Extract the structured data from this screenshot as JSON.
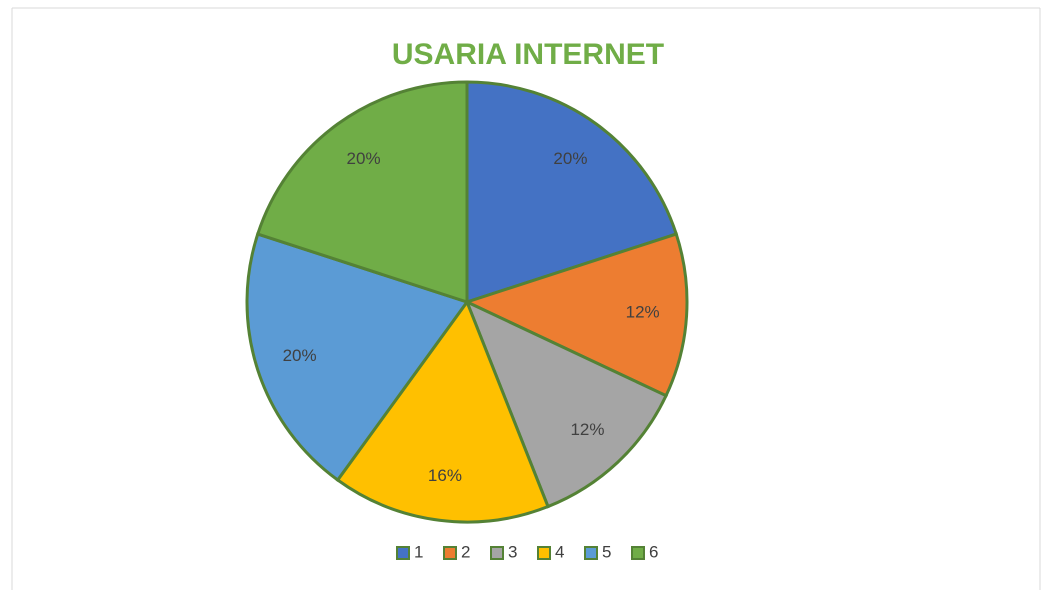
{
  "chart_data": {
    "type": "pie",
    "title": "USARIA INTERNET",
    "categories": [
      "1",
      "2",
      "3",
      "4",
      "5",
      "6"
    ],
    "values": [
      20,
      12,
      12,
      16,
      20,
      20
    ],
    "value_labels": [
      "20%",
      "12%",
      "12%",
      "16%",
      "20%",
      "20%"
    ],
    "colors": [
      "#4472c4",
      "#ed7d31",
      "#a5a5a5",
      "#ffc000",
      "#5b9bd5",
      "#70ad47"
    ],
    "legend": "bottom"
  }
}
